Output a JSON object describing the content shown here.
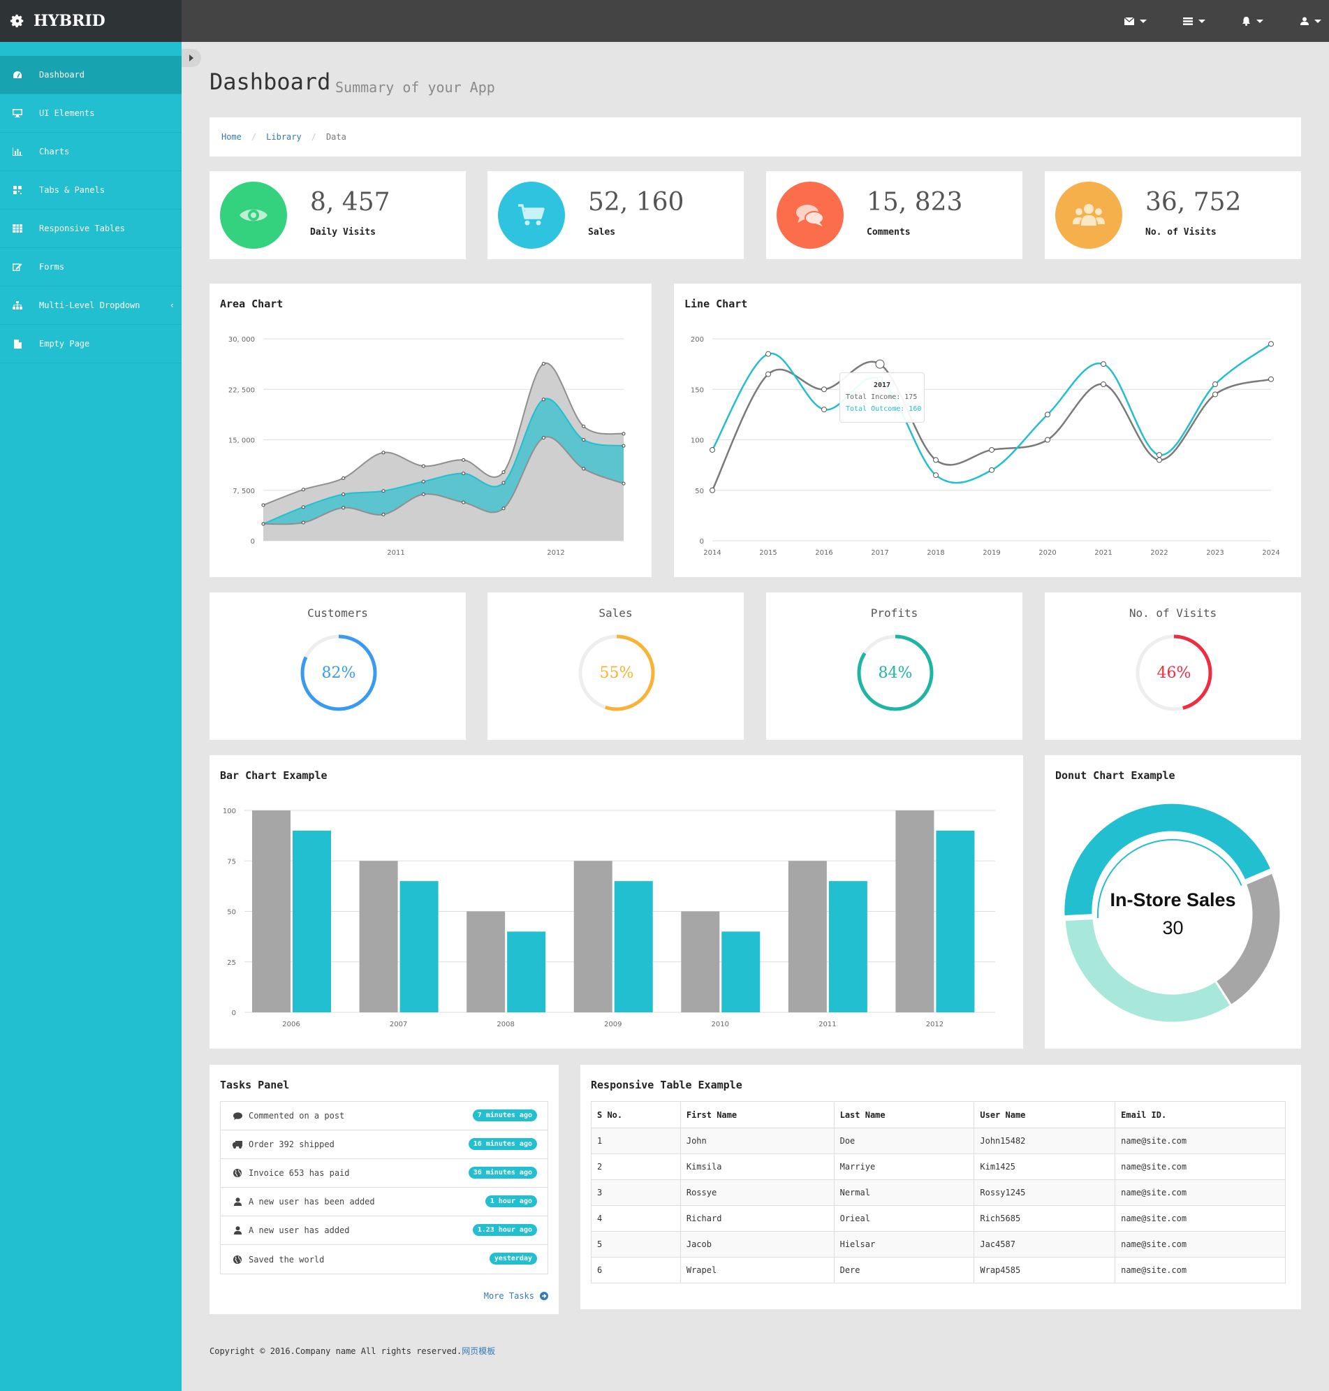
{
  "brand": {
    "name": "HYBRID"
  },
  "topbar": {
    "icons": [
      "envelope-icon",
      "tasks-icon",
      "bell-icon",
      "user-icon"
    ]
  },
  "sidebar": {
    "items": [
      {
        "label": "Dashboard",
        "icon": "dashboard-icon",
        "active": true
      },
      {
        "label": "UI Elements",
        "icon": "desktop-icon"
      },
      {
        "label": "Charts",
        "icon": "bar-chart-icon"
      },
      {
        "label": "Tabs & Panels",
        "icon": "qrcode-icon"
      },
      {
        "label": "Responsive Tables",
        "icon": "table-icon"
      },
      {
        "label": "Forms",
        "icon": "edit-icon"
      },
      {
        "label": "Multi-Level Dropdown",
        "icon": "sitemap-icon"
      },
      {
        "label": "Empty Page",
        "icon": "file-icon"
      }
    ]
  },
  "header": {
    "title": "Dashboard",
    "subtitle": "Summary of your App"
  },
  "breadcrumb": {
    "home": "Home",
    "library": "Library",
    "current": "Data"
  },
  "stats": [
    {
      "value": "8, 457",
      "label": "Daily Visits",
      "color": "#34d17f",
      "icon": "eye-icon"
    },
    {
      "value": "52, 160",
      "label": "Sales",
      "color": "#2ec4e0",
      "icon": "shopping-cart-icon"
    },
    {
      "value": "15, 823",
      "label": "Comments",
      "color": "#fc6d4c",
      "icon": "comments-icon"
    },
    {
      "value": "36, 752",
      "label": "No. of Visits",
      "color": "#f5b04b",
      "icon": "users-icon"
    }
  ],
  "area_chart": {
    "title": "Area Chart",
    "chart_data": {
      "type": "area",
      "yticks": [
        "30, 000",
        "22, 500",
        "15, 000",
        "7, 500",
        "0"
      ],
      "xticks": [
        "2011",
        "2012"
      ],
      "ylim": [
        0,
        30000
      ],
      "series": [
        {
          "values": [
            5300,
            7600,
            9300,
            13100,
            11100,
            12000,
            10200,
            26300,
            17000,
            15900
          ]
        },
        {
          "values": [
            2500,
            5000,
            6900,
            7400,
            8800,
            10000,
            8600,
            21000,
            15000,
            14100
          ]
        },
        {
          "values": [
            2500,
            2700,
            4900,
            3900,
            6900,
            5700,
            4800,
            15300,
            10700,
            8500
          ]
        }
      ]
    }
  },
  "line_chart": {
    "title": "Line Chart",
    "chart_data": {
      "type": "line",
      "x": [
        "2014",
        "2015",
        "2016",
        "2017",
        "2018",
        "2019",
        "2020",
        "2021",
        "2022",
        "2023",
        "2024"
      ],
      "yticks": [
        "200",
        "150",
        "100",
        "50",
        "0"
      ],
      "ylim": [
        0,
        200
      ],
      "series": [
        {
          "name": "Total Income",
          "color": "#7a7a7a",
          "values": [
            50,
            165,
            150,
            175,
            80,
            90,
            100,
            155,
            80,
            145,
            160
          ]
        },
        {
          "name": "Total Outcome",
          "color": "#21bfcf",
          "values": [
            90,
            185,
            130,
            160,
            65,
            70,
            125,
            175,
            85,
            155,
            195
          ]
        }
      ],
      "tooltip": {
        "title": "2017",
        "income": "Total Income: 175",
        "outcome": "Total Outcome: 160"
      }
    }
  },
  "gauges": [
    {
      "title": "Customers",
      "percent": 82,
      "label": "82%",
      "color": "#3a9af2"
    },
    {
      "title": "Sales",
      "percent": 55,
      "label": "55%",
      "color": "#f9b234"
    },
    {
      "title": "Profits",
      "percent": 84,
      "label": "84%",
      "color": "#1fb5a3"
    },
    {
      "title": "No. of Visits",
      "percent": 46,
      "label": "46%",
      "color": "#ee2d44"
    }
  ],
  "bar_chart": {
    "title": "Bar Chart Example",
    "chart_data": {
      "type": "bar",
      "categories": [
        "2006",
        "2007",
        "2008",
        "2009",
        "2010",
        "2011",
        "2012"
      ],
      "yticks": [
        "100",
        "75",
        "50",
        "25",
        "0"
      ],
      "ylim": [
        0,
        100
      ],
      "series": [
        {
          "color": "#a6a6a6",
          "values": [
            100,
            75,
            50,
            75,
            50,
            75,
            100
          ]
        },
        {
          "color": "#21bfcf",
          "values": [
            90,
            65,
            40,
            65,
            40,
            65,
            90
          ]
        }
      ]
    }
  },
  "donut_chart": {
    "title": "Donut Chart Example",
    "center_label": "In-Store Sales",
    "center_value": "30",
    "chart_data": {
      "type": "pie",
      "slices": [
        {
          "value": 40,
          "color": "#21bfcf"
        },
        {
          "value": 20,
          "color": "#a6a6a6"
        },
        {
          "value": 30,
          "color": "#a8e8da"
        }
      ]
    }
  },
  "tasks": {
    "title": "Tasks Panel",
    "items": [
      {
        "text": "Commented on a post",
        "time": "7 minutes ago",
        "icon": "comment-icon"
      },
      {
        "text": "Order 392 shipped",
        "time": "16 minutes ago",
        "icon": "truck-icon"
      },
      {
        "text": "Invoice 653 has paid",
        "time": "36 minutes ago",
        "icon": "globe-icon"
      },
      {
        "text": "A new user has been added",
        "time": "1 hour ago",
        "icon": "user-icon"
      },
      {
        "text": "A new user has added",
        "time": "1.23 hour ago",
        "icon": "user-icon"
      },
      {
        "text": "Saved the world",
        "time": "yesterday",
        "icon": "globe-icon"
      }
    ],
    "more": "More Tasks"
  },
  "table": {
    "title": "Responsive Table Example",
    "columns": [
      "S No.",
      "First Name",
      "Last Name",
      "User Name",
      "Email ID."
    ],
    "rows": [
      [
        "1",
        "John",
        "Doe",
        "John15482",
        "name@site.com"
      ],
      [
        "2",
        "Kimsila",
        "Marriye",
        "Kim1425",
        "name@site.com"
      ],
      [
        "3",
        "Rossye",
        "Nermal",
        "Rossy1245",
        "name@site.com"
      ],
      [
        "4",
        "Richard",
        "Orieal",
        "Rich5685",
        "name@site.com"
      ],
      [
        "5",
        "Jacob",
        "Hielsar",
        "Jac4587",
        "name@site.com"
      ],
      [
        "6",
        "Wrapel",
        "Dere",
        "Wrap4585",
        "name@site.com"
      ]
    ]
  },
  "footer": {
    "text": "Copyright © 2016.Company name All rights reserved.",
    "link": "网页模板"
  }
}
